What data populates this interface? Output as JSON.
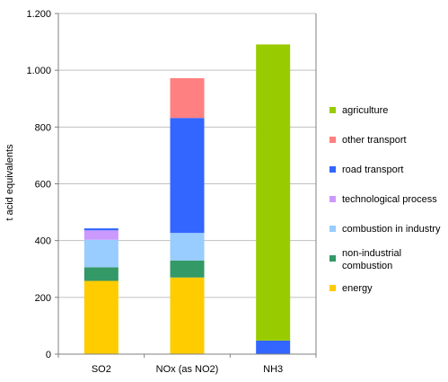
{
  "chart_data": {
    "type": "bar",
    "stacked": true,
    "categories": [
      "SO2",
      "NOx (as NO2)",
      "NH3"
    ],
    "ylabel": "t acid equivalents",
    "ylim": [
      0,
      1200
    ],
    "y_ticks": [
      0,
      200,
      400,
      600,
      800,
      1000,
      1200
    ],
    "y_tick_labels": [
      "0",
      "200",
      "400",
      "600",
      "800",
      "1.000",
      "1.200"
    ],
    "grid": true,
    "legend_position": "right",
    "series": [
      {
        "name": "energy",
        "color": "#FFCC00",
        "values": [
          258,
          270,
          0
        ]
      },
      {
        "name": "non-industrial combustion",
        "name_lines": [
          "non-industrial",
          "combustion"
        ],
        "color": "#339966",
        "values": [
          48,
          60,
          0
        ]
      },
      {
        "name": "combustion in industry",
        "color": "#99CCFF",
        "values": [
          97,
          97,
          0
        ]
      },
      {
        "name": "technological process",
        "color": "#CC99FF",
        "values": [
          33,
          0,
          0
        ]
      },
      {
        "name": "road transport",
        "color": "#3366FF",
        "values": [
          7,
          405,
          48
        ]
      },
      {
        "name": "other transport",
        "color": "#FF8080",
        "values": [
          0,
          140,
          0
        ]
      },
      {
        "name": "agriculture",
        "color": "#99CC00",
        "values": [
          0,
          0,
          1043
        ]
      }
    ]
  }
}
